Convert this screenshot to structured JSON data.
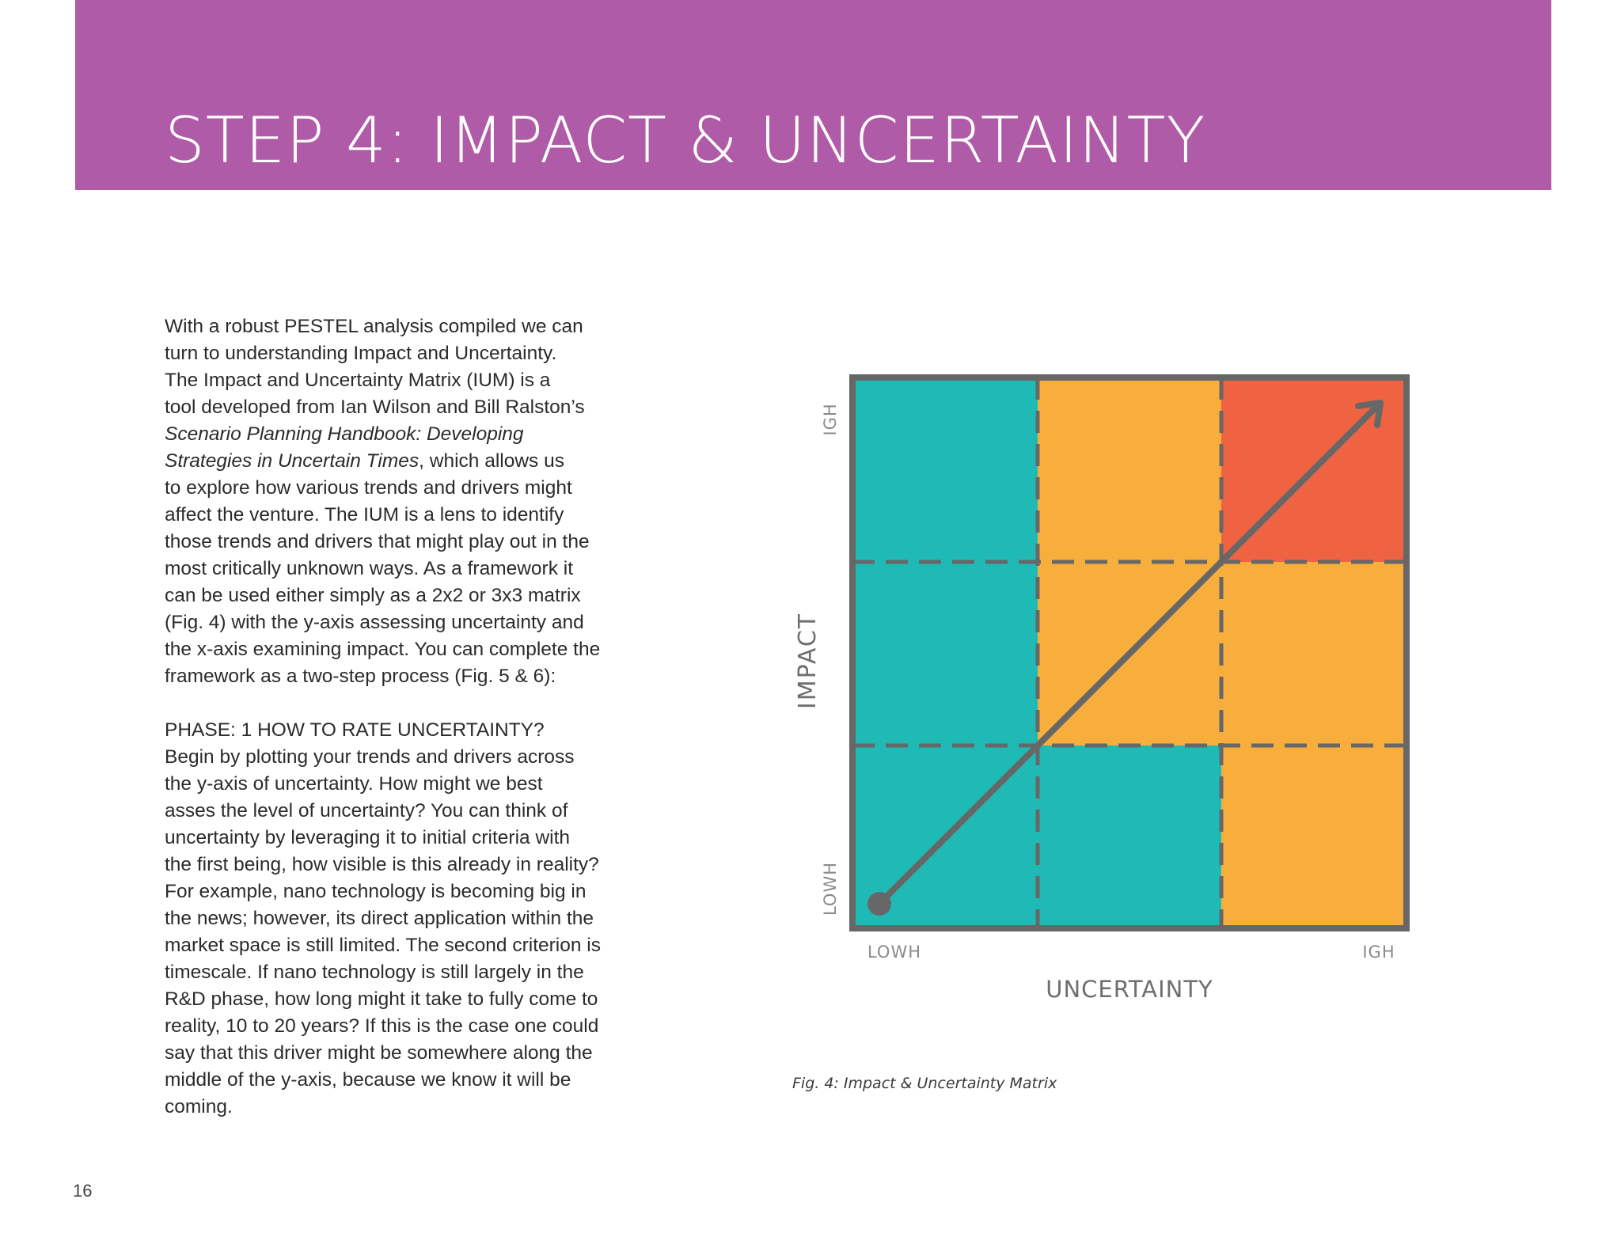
{
  "header": {
    "title": "STEP 4: IMPACT & UNCERTAINTY",
    "band_color": "#af5ba8"
  },
  "body": {
    "paragraph1_lines": [
      "With a robust PESTEL analysis compiled we can",
      "turn to understanding Impact and Uncertainty.",
      "The Impact and Uncertainty Matrix (IUM) is a",
      "tool developed from Ian Wilson and Bill Ralston’s",
      "Scenario Planning Handbook: Developing",
      "Strategies in Uncertain Times",
      ", which allows us",
      "to explore how various trends and drivers might",
      "affect the venture. The IUM is a lens to identify",
      "those trends and drivers that might play out in the",
      "most critically unknown ways. As a framework it",
      "can be used either simply as a 2x2 or 3x3 matrix",
      "(Fig. 4) with the y-axis assessing uncertainty and",
      "the x-axis examining impact. You can complete the",
      "framework as a two-step process (Fig. 5 & 6):"
    ],
    "phase_heading": "PHASE: 1 HOW TO RATE UNCERTAINTY?",
    "paragraph2_lines": [
      "Begin by plotting your trends and drivers across",
      "the y-axis of uncertainty. How might we best",
      "asses the level of uncertainty? You can think of",
      "uncertainty by leveraging it to initial criteria with",
      "the first being, how visible is this already in reality?",
      "For example, nano technology is becoming big in",
      "the news; however, its direct application within the",
      "market space is still limited. The second criterion is",
      "timescale. If nano technology is still largely in the",
      "R&D phase, how long might it take to fully come to",
      "reality, 10 to 20 years? If this is the case one could",
      "say that this driver might be somewhere along the",
      "middle of the y-axis, because we know it will be",
      "coming."
    ]
  },
  "figure": {
    "y_axis_label": "IMPACT",
    "y_high_label": "IGH",
    "y_low_label": "LOWH",
    "x_axis_label": "UNCERTAINTY",
    "x_low_label": "LOWH",
    "x_high_label": "IGH",
    "caption": "Fig. 4: Impact & Uncertainty Matrix",
    "grid_rows": [
      [
        "teal",
        "yellow",
        "red"
      ],
      [
        "teal",
        "yellow",
        "yellow"
      ],
      [
        "teal",
        "teal",
        "yellow"
      ]
    ],
    "colors": {
      "teal": "#20bab6",
      "yellow": "#f7ae3c",
      "red": "#ef6342",
      "frame": "#676767"
    }
  },
  "page_number": "16"
}
